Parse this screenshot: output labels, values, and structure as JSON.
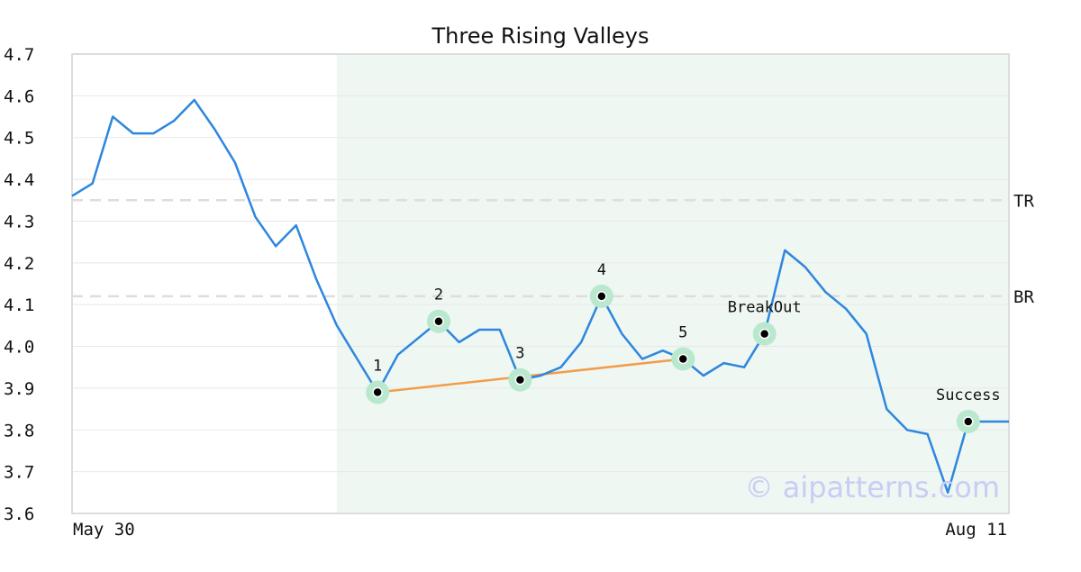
{
  "chart_data": {
    "type": "line",
    "title": "Three Rising Valleys",
    "xlabel": "",
    "ylabel": "",
    "x_start_label": "May 30",
    "x_end_label": "Aug 11",
    "ylim": [
      3.6,
      4.7
    ],
    "yticks": [
      "3.6",
      "3.7",
      "3.8",
      "3.9",
      "4.0",
      "4.1",
      "4.2",
      "4.3",
      "4.4",
      "4.5",
      "4.6",
      "4.7"
    ],
    "grid": true,
    "series": [
      {
        "values": [
          4.36,
          4.39,
          4.55,
          4.51,
          4.51,
          4.54,
          4.59,
          4.52,
          4.44,
          4.31,
          4.24,
          4.29,
          4.16,
          4.05,
          3.97,
          3.89,
          3.98,
          4.02,
          4.06,
          4.01,
          4.04,
          4.04,
          3.92,
          3.93,
          3.95,
          4.01,
          4.12,
          4.03,
          3.97,
          3.99,
          3.97,
          3.93,
          3.96,
          3.95,
          4.03,
          4.23,
          4.19,
          4.13,
          4.09,
          4.03,
          3.85,
          3.8,
          3.79,
          3.65,
          3.82,
          3.82,
          3.82
        ]
      }
    ],
    "pattern_range": [
      13,
      46
    ],
    "levels": [
      {
        "label": "TR",
        "value": 4.35
      },
      {
        "label": "BR",
        "value": 4.12
      }
    ],
    "trendline": {
      "from": 15,
      "to": 30
    },
    "markers": [
      {
        "label": "1",
        "index": 15,
        "value": 3.89
      },
      {
        "label": "2",
        "index": 18,
        "value": 4.06
      },
      {
        "label": "3",
        "index": 22,
        "value": 3.92
      },
      {
        "label": "4",
        "index": 26,
        "value": 4.12
      },
      {
        "label": "5",
        "index": 30,
        "value": 3.97
      },
      {
        "label": "BreakOut",
        "index": 34,
        "value": 4.03
      },
      {
        "label": "Success",
        "index": 44,
        "value": 3.82
      }
    ],
    "watermark": "© aipatterns.com",
    "colors": {
      "line": "#2e86de",
      "trendline": "#f39c4a",
      "marker_halo": "#b9e8cf",
      "pattern_band": "#eef7f2",
      "level_line": "#dddddd",
      "grid": "#e8e8e8",
      "frame": "#dddddd"
    }
  }
}
